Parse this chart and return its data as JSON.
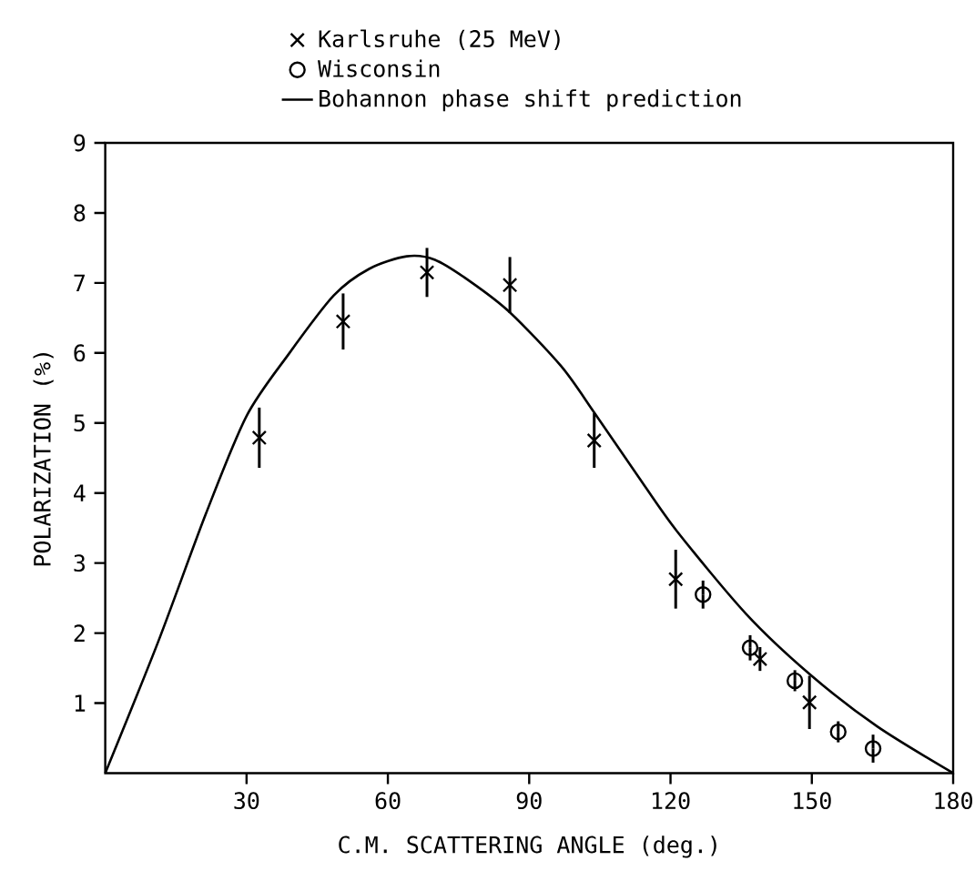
{
  "chart_data": {
    "type": "scatter",
    "xlabel": "C.M. SCATTERING ANGLE (deg.)",
    "ylabel": "POLARIZATION (%)",
    "xlim": [
      0,
      180
    ],
    "ylim": [
      0,
      9
    ],
    "xticks": [
      30,
      60,
      90,
      120,
      150,
      180
    ],
    "yticks": [
      1,
      2,
      3,
      4,
      5,
      6,
      7,
      8,
      9
    ],
    "legend": "top",
    "grid": false,
    "series": [
      {
        "name": "Karlsruhe (25 MeV)",
        "color": "#000000",
        "marker": "cross",
        "x": [
          32.7,
          50.5,
          68.3,
          85.9,
          103.8,
          121.1,
          139.0,
          149.5
        ],
        "values": [
          4.79,
          6.45,
          7.15,
          6.97,
          4.75,
          2.77,
          1.63,
          1.01
        ],
        "errors": [
          0.43,
          0.4,
          0.35,
          0.4,
          0.39,
          0.42,
          0.17,
          0.38
        ]
      },
      {
        "name": "Wisconsin",
        "color": "#000000",
        "marker": "circle",
        "x": [
          126.9,
          136.9,
          146.4,
          155.6,
          163.0
        ],
        "values": [
          2.55,
          1.79,
          1.32,
          0.59,
          0.35
        ],
        "errors": [
          0.2,
          0.18,
          0.15,
          0.15,
          0.2
        ]
      },
      {
        "name": "Bohannon phase shift prediction",
        "type": "line",
        "color": "#000000",
        "marker": "none",
        "line_style": "solid",
        "x": [
          0,
          11.2,
          21.4,
          30,
          38.9,
          48.5,
          56,
          64,
          70,
          77.5,
          85.9,
          96.8,
          103.9,
          113,
          121.3,
          136.1,
          149.6,
          163.8,
          180
        ],
        "values": [
          0,
          1.87,
          3.71,
          5.1,
          5.98,
          6.82,
          7.2,
          7.38,
          7.33,
          7.02,
          6.58,
          5.81,
          5.14,
          4.25,
          3.46,
          2.27,
          1.41,
          0.67,
          0
        ]
      }
    ]
  }
}
